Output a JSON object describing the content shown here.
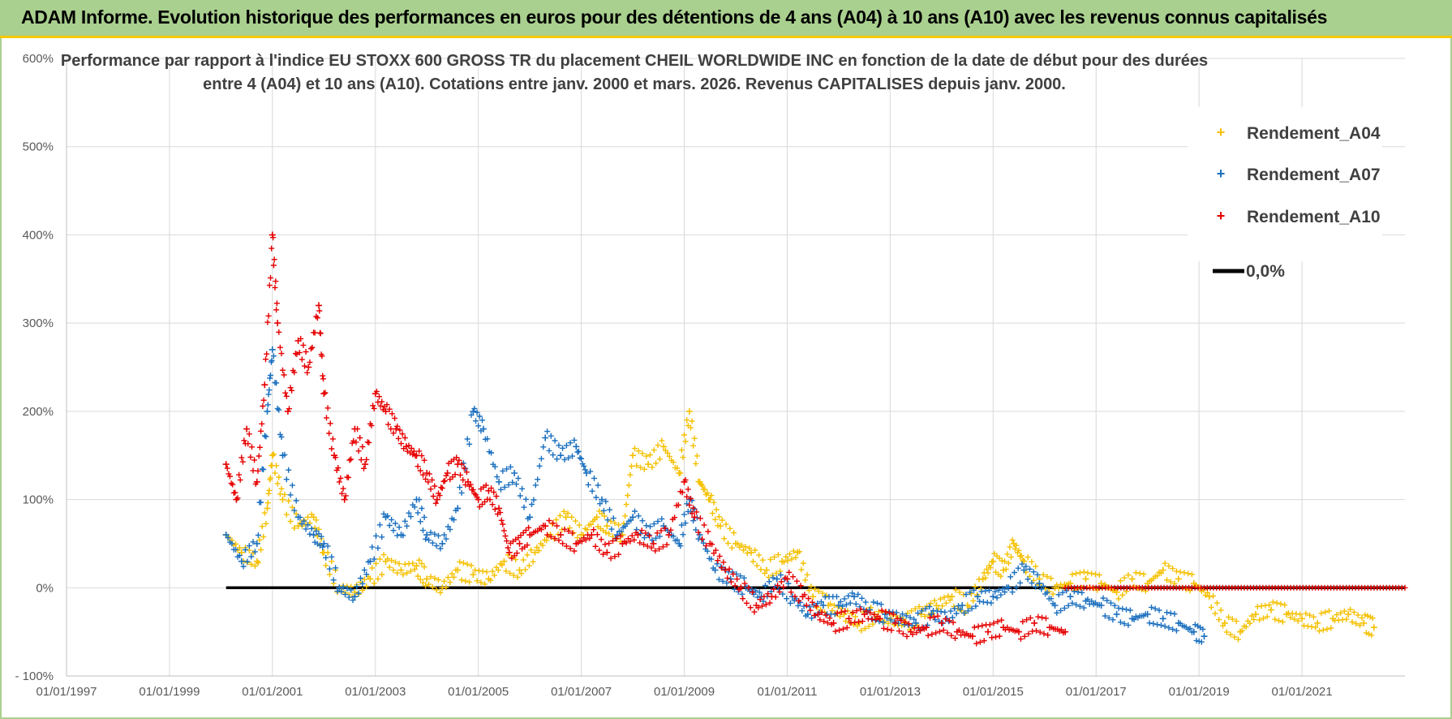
{
  "header": {
    "title": "ADAM Informe. Evolution historique des performances en euros pour des détentions de 4 ans (A04) à 10 ans (A10) avec les revenus connus capitalisés"
  },
  "colors": {
    "A04": "#f5c000",
    "A07": "#1a6fbf",
    "A10": "#e60000",
    "zero": "#000000",
    "grid": "#d9d9d9",
    "banner": "#a9d08e"
  },
  "chart_data": {
    "type": "scatter",
    "title_line1": "Performance par rapport à l'indice EU STOXX 600 GROSS TR  du placement CHEIL WORLDWIDE INC en fonction de la date de début pour des durées",
    "title_line2": "entre 4 (A04) et 10 ans (A10). Cotations entre janv. 2000 et mars. 2026. Revenus CAPITALISES depuis janv. 2000.",
    "x_labels": [
      "01/01/1997",
      "01/01/1999",
      "01/01/2001",
      "01/01/2003",
      "01/01/2005",
      "01/01/2007",
      "01/01/2009",
      "01/01/2011",
      "01/01/2013",
      "01/01/2015",
      "01/01/2017",
      "01/01/2019",
      "01/01/2021"
    ],
    "xlim": [
      1997.0,
      2023.0
    ],
    "ylim": [
      -100,
      600
    ],
    "y_ticks": [
      -100,
      0,
      100,
      200,
      300,
      400,
      500,
      600
    ],
    "y_tick_labels": [
      "- 100%",
      "0%",
      "100%",
      "200%",
      "300%",
      "400%",
      "500%",
      "600%"
    ],
    "legend": [
      "Rendement_A04",
      "Rendement_A07",
      "Rendement_A10",
      "0,0%"
    ],
    "series": [
      {
        "name": "Rendement_A04",
        "x": [
          2000.1,
          2000.4,
          2000.7,
          2000.9,
          2001.0,
          2001.2,
          2001.5,
          2001.8,
          2002.0,
          2002.3,
          2002.6,
          2002.9,
          2003.2,
          2003.5,
          2003.8,
          2004.0,
          2004.3,
          2004.6,
          2004.9,
          2005.2,
          2005.5,
          2005.8,
          2006.1,
          2006.4,
          2006.7,
          2007.0,
          2007.3,
          2007.5,
          2007.8,
          2008.0,
          2008.3,
          2008.6,
          2008.9,
          2009.1,
          2009.3,
          2009.5,
          2009.7,
          2010.0,
          2010.3,
          2010.6,
          2010.9,
          2011.2,
          2011.5,
          2011.8,
          2012.1,
          2012.4,
          2012.7,
          2013.0,
          2013.3,
          2013.6,
          2013.9,
          2014.2,
          2014.5,
          2014.8,
          2015.0,
          2015.2,
          2015.4,
          2015.6,
          2015.9,
          2016.2,
          2016.5,
          2016.8,
          2017.1,
          2017.4,
          2017.7,
          2018.0,
          2018.3,
          2018.6,
          2018.9,
          2019.2,
          2019.5,
          2019.8,
          2020.1,
          2020.4,
          2020.7,
          2021.0,
          2021.3,
          2021.6,
          2021.9,
          2022.2,
          2022.4
        ],
        "y": [
          60,
          40,
          30,
          90,
          150,
          100,
          70,
          80,
          40,
          0,
          -5,
          10,
          30,
          20,
          25,
          10,
          0,
          20,
          15,
          10,
          30,
          20,
          40,
          60,
          80,
          60,
          80,
          70,
          60,
          150,
          140,
          160,
          130,
          200,
          120,
          100,
          70,
          50,
          40,
          20,
          30,
          40,
          -10,
          -20,
          -30,
          -40,
          -30,
          -35,
          -40,
          -30,
          -20,
          -10,
          -20,
          10,
          30,
          20,
          50,
          30,
          10,
          0,
          5,
          10,
          5,
          -5,
          10,
          5,
          20,
          10,
          5,
          -10,
          -40,
          -50,
          -30,
          -25,
          -30,
          -35,
          -40,
          -35,
          -30,
          -40,
          -45
        ]
      },
      {
        "name": "Rendement_A07",
        "x": [
          2000.1,
          2000.4,
          2000.7,
          2000.9,
          2001.0,
          2001.2,
          2001.5,
          2001.8,
          2002.0,
          2002.3,
          2002.6,
          2002.9,
          2003.2,
          2003.5,
          2003.8,
          2004.0,
          2004.3,
          2004.6,
          2004.9,
          2005.1,
          2005.4,
          2005.7,
          2006.0,
          2006.3,
          2006.6,
          2006.9,
          2007.1,
          2007.4,
          2007.7,
          2008.0,
          2008.3,
          2008.6,
          2008.9,
          2009.1,
          2009.3,
          2009.6,
          2009.9,
          2010.2,
          2010.5,
          2010.8,
          2011.1,
          2011.4,
          2011.7,
          2012.0,
          2012.3,
          2012.6,
          2012.9,
          2013.2,
          2013.5,
          2013.8,
          2014.1,
          2014.4,
          2014.7,
          2015.0,
          2015.3,
          2015.6,
          2015.9,
          2016.2,
          2016.5,
          2016.8,
          2017.1,
          2017.4,
          2017.7,
          2018.0,
          2018.3,
          2018.6,
          2018.9,
          2019.1
        ],
        "y": [
          60,
          30,
          50,
          200,
          270,
          150,
          80,
          60,
          50,
          0,
          -10,
          30,
          80,
          60,
          100,
          60,
          50,
          90,
          200,
          180,
          120,
          130,
          80,
          170,
          150,
          160,
          130,
          100,
          60,
          80,
          60,
          70,
          50,
          100,
          60,
          20,
          10,
          0,
          -10,
          10,
          -10,
          -30,
          -20,
          -20,
          -10,
          -25,
          -30,
          -35,
          -40,
          -30,
          -35,
          -20,
          -10,
          -10,
          0,
          20,
          5,
          -20,
          -10,
          -15,
          -20,
          -30,
          -35,
          -30,
          -35,
          -40,
          -50,
          -55
        ]
      },
      {
        "name": "Rendement_A10",
        "x": [
          2000.1,
          2000.3,
          2000.5,
          2000.7,
          2000.85,
          2001.0,
          2001.1,
          2001.3,
          2001.5,
          2001.7,
          2001.9,
          2002.0,
          2002.2,
          2002.4,
          2002.6,
          2002.8,
          2003.0,
          2003.2,
          2003.4,
          2003.6,
          2003.8,
          2004.0,
          2004.2,
          2004.4,
          2004.6,
          2004.8,
          2005.0,
          2005.2,
          2005.4,
          2005.6,
          2005.8,
          2006.0,
          2006.3,
          2006.6,
          2006.9,
          2007.2,
          2007.5,
          2007.8,
          2008.1,
          2008.4,
          2008.7,
          2009.0,
          2009.2,
          2009.5,
          2009.8,
          2010.1,
          2010.4,
          2010.7,
          2011.0,
          2011.3,
          2011.6,
          2011.9,
          2012.2,
          2012.5,
          2012.8,
          2013.1,
          2013.4,
          2013.7,
          2014.0,
          2014.3,
          2014.6,
          2014.9,
          2015.2,
          2015.5,
          2015.8,
          2016.1,
          2016.4
        ],
        "y": [
          140,
          100,
          180,
          120,
          230,
          400,
          300,
          200,
          280,
          250,
          320,
          220,
          150,
          100,
          180,
          140,
          220,
          200,
          180,
          160,
          150,
          130,
          100,
          130,
          140,
          120,
          100,
          110,
          90,
          40,
          50,
          60,
          70,
          60,
          50,
          60,
          40,
          50,
          60,
          50,
          60,
          120,
          80,
          50,
          20,
          0,
          -20,
          -10,
          10,
          -10,
          -30,
          -40,
          -35,
          -30,
          -35,
          -40,
          -50,
          -45,
          -40,
          -50,
          -55,
          -50,
          -45,
          -50,
          -40,
          -45,
          -50
        ]
      },
      {
        "name": "0,0%",
        "x": [
          2000.1,
          2023.0
        ],
        "y": [
          0,
          0
        ]
      }
    ]
  }
}
